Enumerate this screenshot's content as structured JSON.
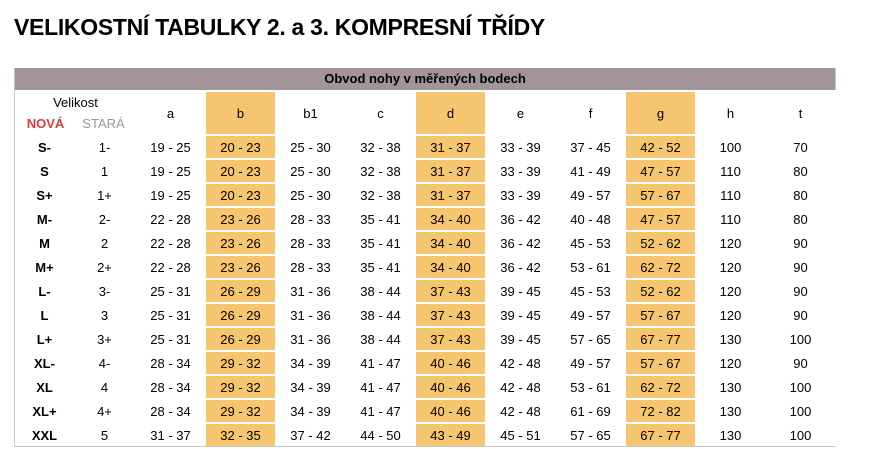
{
  "title": "VELIKOSTNÍ TABULKY 2. a 3. KOMPRESNÍ TŘÍDY",
  "table": {
    "caption": "Obvod nohy v měřených bodech",
    "size_header": "Velikost",
    "new_label": "NOVÁ",
    "old_label": "STARÁ",
    "columns": [
      "a",
      "b",
      "b1",
      "c",
      "d",
      "e",
      "f",
      "g",
      "h",
      "t"
    ],
    "highlighted_columns": [
      "b",
      "d",
      "g"
    ],
    "highlight_color": "#f6c570",
    "rows": [
      {
        "new": "S-",
        "old": "1-",
        "values": [
          "19 - 25",
          "20 - 23",
          "25 - 30",
          "32 - 38",
          "31 - 37",
          "33 - 39",
          "37 - 45",
          "42 - 52",
          "100",
          "70"
        ]
      },
      {
        "new": "S",
        "old": "1",
        "values": [
          "19 - 25",
          "20 - 23",
          "25 - 30",
          "32 - 38",
          "31 - 37",
          "33 - 39",
          "41 - 49",
          "47 - 57",
          "110",
          "80"
        ]
      },
      {
        "new": "S+",
        "old": "1+",
        "values": [
          "19 - 25",
          "20 - 23",
          "25 - 30",
          "32 - 38",
          "31 - 37",
          "33 - 39",
          "49 - 57",
          "57 - 67",
          "110",
          "80"
        ]
      },
      {
        "new": "M-",
        "old": "2-",
        "values": [
          "22 - 28",
          "23 - 26",
          "28 - 33",
          "35 - 41",
          "34 - 40",
          "36 - 42",
          "40 - 48",
          "47 - 57",
          "110",
          "80"
        ]
      },
      {
        "new": "M",
        "old": "2",
        "values": [
          "22 - 28",
          "23 - 26",
          "28 - 33",
          "35 - 41",
          "34 - 40",
          "36 - 42",
          "45 - 53",
          "52 - 62",
          "120",
          "90"
        ]
      },
      {
        "new": "M+",
        "old": "2+",
        "values": [
          "22 - 28",
          "23 - 26",
          "28 - 33",
          "35 - 41",
          "34 - 40",
          "36 - 42",
          "53 - 61",
          "62 - 72",
          "120",
          "90"
        ]
      },
      {
        "new": "L-",
        "old": "3-",
        "values": [
          "25 - 31",
          "26 - 29",
          "31 - 36",
          "38 - 44",
          "37 - 43",
          "39 - 45",
          "45 - 53",
          "52 - 62",
          "120",
          "90"
        ]
      },
      {
        "new": "L",
        "old": "3",
        "values": [
          "25 - 31",
          "26 - 29",
          "31 - 36",
          "38 - 44",
          "37 - 43",
          "39 - 45",
          "49 - 57",
          "57 - 67",
          "120",
          "90"
        ]
      },
      {
        "new": "L+",
        "old": "3+",
        "values": [
          "25 - 31",
          "26 - 29",
          "31 - 36",
          "38 - 44",
          "37 - 43",
          "39 - 45",
          "57 - 65",
          "67 - 77",
          "130",
          "100"
        ]
      },
      {
        "new": "XL-",
        "old": "4-",
        "values": [
          "28 - 34",
          "29 - 32",
          "34 - 39",
          "41 - 47",
          "40 - 46",
          "42 - 48",
          "49 - 57",
          "57 - 67",
          "120",
          "90"
        ]
      },
      {
        "new": "XL",
        "old": "4",
        "values": [
          "28 - 34",
          "29 - 32",
          "34 - 39",
          "41 - 47",
          "40 - 46",
          "42 - 48",
          "53 - 61",
          "62 - 72",
          "130",
          "100"
        ]
      },
      {
        "new": "XL+",
        "old": "4+",
        "values": [
          "28 - 34",
          "29 - 32",
          "34 - 39",
          "41 - 47",
          "40 - 46",
          "42 - 48",
          "61 - 69",
          "72 - 82",
          "130",
          "100"
        ]
      },
      {
        "new": "XXL",
        "old": "5",
        "values": [
          "31 - 37",
          "32 - 35",
          "37 - 42",
          "44 - 50",
          "43 - 49",
          "45 - 51",
          "57 - 65",
          "67 - 77",
          "130",
          "100"
        ]
      }
    ]
  }
}
